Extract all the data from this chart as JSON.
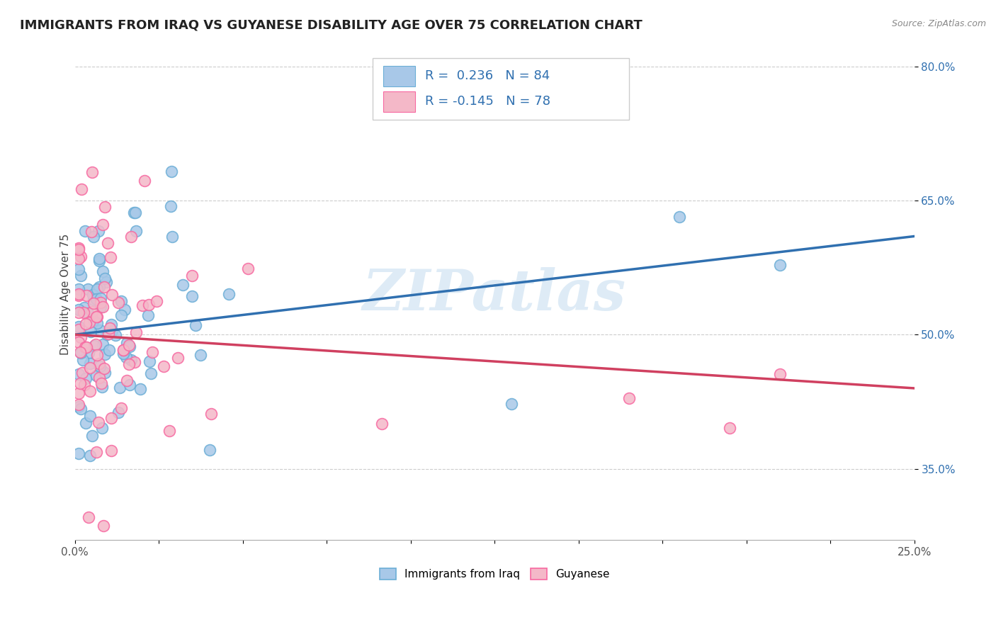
{
  "title": "IMMIGRANTS FROM IRAQ VS GUYANESE DISABILITY AGE OVER 75 CORRELATION CHART",
  "source_text": "Source: ZipAtlas.com",
  "ylabel": "Disability Age Over 75",
  "xlim": [
    0.0,
    0.25
  ],
  "ylim": [
    0.27,
    0.82
  ],
  "xticks": [
    0.0,
    0.025,
    0.05,
    0.075,
    0.1,
    0.125,
    0.15,
    0.175,
    0.2,
    0.225,
    0.25
  ],
  "xtick_labels_sparse": [
    "0.0%",
    "",
    "",
    "",
    "",
    "",
    "",
    "",
    "",
    "",
    "25.0%"
  ],
  "yticks_right": [
    0.35,
    0.5,
    0.65,
    0.8
  ],
  "ytick_labels_right": [
    "35.0%",
    "50.0%",
    "65.0%",
    "80.0%"
  ],
  "legend_labels": [
    "Immigrants from Iraq",
    "Guyanese"
  ],
  "legend_R": [
    0.236,
    -0.145
  ],
  "legend_N": [
    84,
    78
  ],
  "blue_color": "#a8c8e8",
  "blue_edge_color": "#6baed6",
  "pink_color": "#f4b8c8",
  "pink_edge_color": "#f768a1",
  "blue_line_color": "#3070b0",
  "pink_line_color": "#d04060",
  "watermark": "ZIPatlas",
  "watermark_color": "#c8dff0",
  "blue_trend_y0": 0.5,
  "blue_trend_y1": 0.61,
  "pink_trend_y0": 0.5,
  "pink_trend_y1": 0.44,
  "grid_color": "#cccccc",
  "background_color": "#ffffff",
  "title_fontsize": 13,
  "axis_label_fontsize": 11,
  "tick_fontsize": 11,
  "legend_fontsize": 13
}
